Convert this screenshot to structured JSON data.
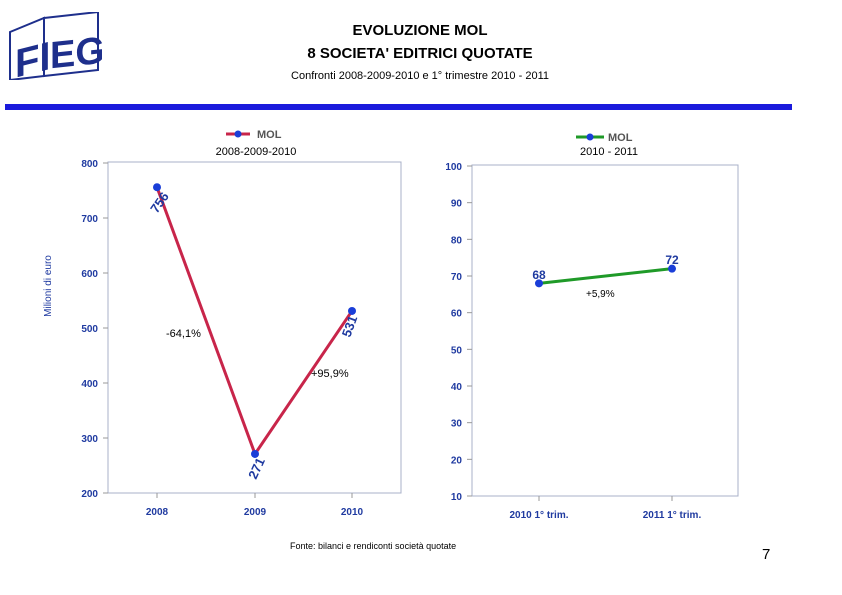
{
  "header": {
    "logo_text": "FIEG",
    "title_line1": "EVOLUZIONE MOL",
    "title_line2": "8 SOCIETA' EDITRICI QUOTATE",
    "subtitle": "Confronti 2008-2009-2010 e 1° trimestre 2010 - 2011"
  },
  "colors": {
    "rule": "#1a1adc",
    "series_left": "#c8254a",
    "series_right": "#1f9a28",
    "marker": "#1a3ed8",
    "label_color": "#1f3aa0"
  },
  "chart_data": [
    {
      "type": "line",
      "legend": "MOL",
      "subtitle": "2008-2009-2010",
      "ylabel": "Milioni di euro",
      "ylim": [
        200,
        800
      ],
      "yticks": [
        "200",
        "300",
        "400",
        "500",
        "600",
        "700",
        "800"
      ],
      "categories": [
        "2008",
        "2009",
        "2010"
      ],
      "series": [
        {
          "name": "MOL",
          "values": [
            756,
            271,
            531
          ]
        }
      ],
      "data_labels": [
        "756",
        "271",
        "531"
      ],
      "annotations": [
        "-64,1%",
        "+95,9%"
      ]
    },
    {
      "type": "line",
      "legend": "MOL",
      "subtitle": "2010 - 2011",
      "ylim": [
        10,
        100
      ],
      "yticks": [
        "10",
        "20",
        "30",
        "40",
        "50",
        "60",
        "70",
        "80",
        "90",
        "100"
      ],
      "categories": [
        "2010 1° trim.",
        "2011 1° trim."
      ],
      "series": [
        {
          "name": "MOL",
          "values": [
            68,
            72
          ]
        }
      ],
      "data_labels": [
        "68",
        "72"
      ],
      "annotations": [
        "+5,9%"
      ]
    }
  ],
  "footer": {
    "source": "Fonte: bilanci e rendiconti società quotate",
    "page_number": "7"
  }
}
